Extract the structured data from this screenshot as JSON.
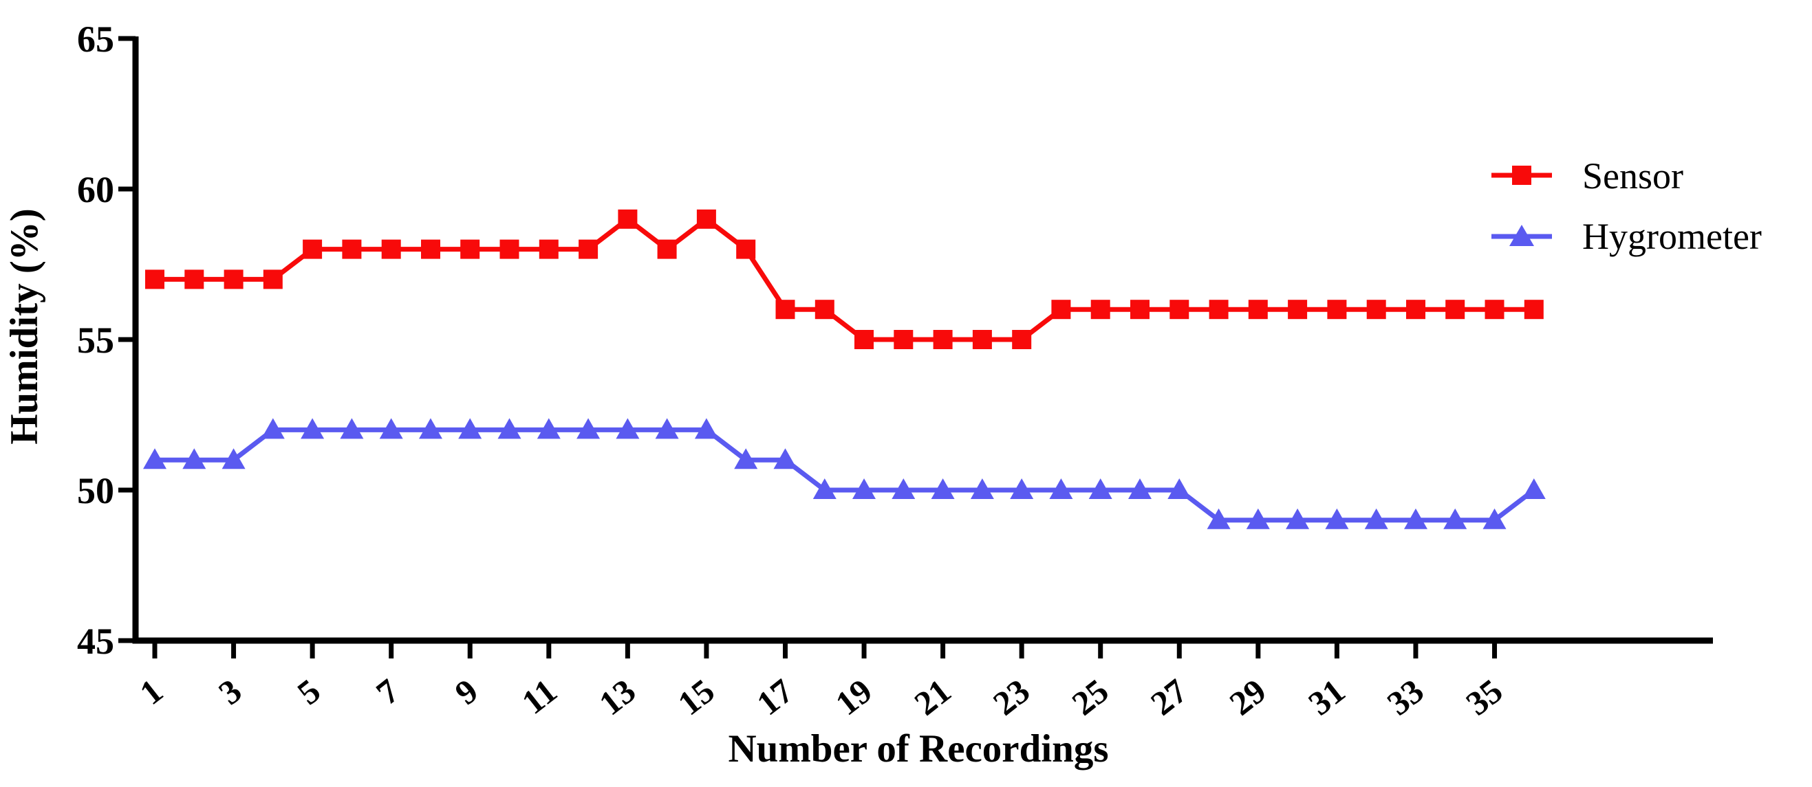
{
  "figure": {
    "background": "#ffffff",
    "axis_color": "#000000",
    "text_color": "#000000"
  },
  "chart_data": {
    "type": "line",
    "title": "",
    "xlabel": "Number of Recordings",
    "ylabel": "Humidity (%)",
    "x": [
      1,
      2,
      3,
      4,
      5,
      6,
      7,
      8,
      9,
      10,
      11,
      12,
      13,
      14,
      15,
      16,
      17,
      18,
      19,
      20,
      21,
      22,
      23,
      24,
      25,
      26,
      27,
      28,
      29,
      30,
      31,
      32,
      33,
      34,
      35,
      36
    ],
    "series": [
      {
        "name": "Sensor",
        "color": "#f80a0a",
        "marker": "square",
        "values": [
          57,
          57,
          57,
          57,
          58,
          58,
          58,
          58,
          58,
          58,
          58,
          58,
          59,
          58,
          59,
          58,
          56,
          56,
          55,
          55,
          55,
          55,
          55,
          56,
          56,
          56,
          56,
          56,
          56,
          56,
          56,
          56,
          56,
          56,
          56,
          56
        ]
      },
      {
        "name": "Hygrometer",
        "color": "#5a5af0",
        "marker": "triangle",
        "values": [
          51,
          51,
          51,
          52,
          52,
          52,
          52,
          52,
          52,
          52,
          52,
          52,
          52,
          52,
          52,
          51,
          51,
          50,
          50,
          50,
          50,
          50,
          50,
          50,
          50,
          50,
          50,
          49,
          49,
          49,
          49,
          49,
          49,
          49,
          49,
          50
        ]
      }
    ],
    "xticks": [
      1,
      3,
      5,
      7,
      9,
      11,
      13,
      15,
      17,
      19,
      21,
      23,
      25,
      27,
      29,
      31,
      33,
      35
    ],
    "yticks": [
      65,
      60,
      55,
      50,
      45
    ],
    "ylim": [
      45,
      65
    ],
    "xlim": [
      1,
      36
    ],
    "grid": false,
    "legend_position": "upper right"
  }
}
